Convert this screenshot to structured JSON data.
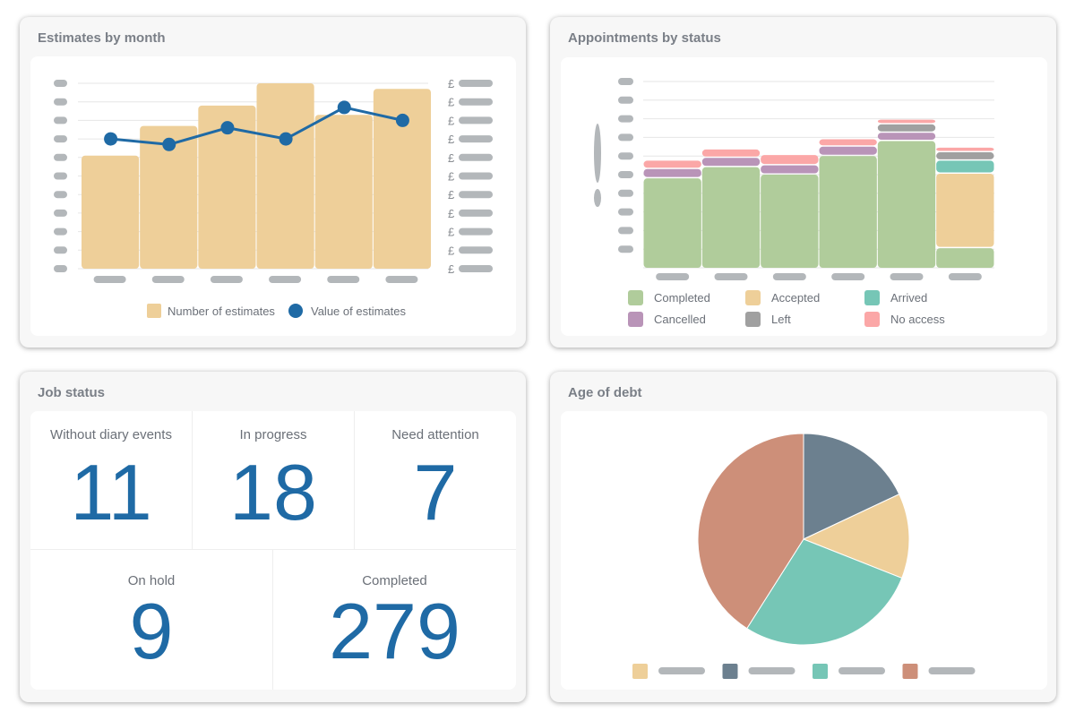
{
  "cards": {
    "estimates": {
      "title": "Estimates by month"
    },
    "appointments": {
      "title": "Appointments by status"
    },
    "job_status": {
      "title": "Job status",
      "tiles": [
        {
          "label": "Without diary events",
          "value": "11"
        },
        {
          "label": "In progress",
          "value": "18"
        },
        {
          "label": "Need attention",
          "value": "7"
        },
        {
          "label": "On hold",
          "value": "9"
        },
        {
          "label": "Completed",
          "value": "279"
        }
      ]
    },
    "debt": {
      "title": "Age of debt"
    }
  },
  "colors": {
    "tan": "#eecf99",
    "blue": "#1f6aa5",
    "green": "#b0cc9b",
    "purple": "#b994b8",
    "teal": "#76c6b6",
    "grey": "#a0a0a0",
    "pink": "#fba7a7",
    "slate": "#6c808f",
    "salmon": "#cd8f79",
    "placeholder": "#b3b7ba"
  },
  "chart_data": [
    {
      "type": "bar+line",
      "title": "Estimates by month",
      "ticks_redacted": true,
      "right_axis_prefix": "£",
      "categories_count": 6,
      "ylim": [
        0,
        10
      ],
      "y2lim": [
        0,
        10
      ],
      "grid": true,
      "legend_placement": "bottom",
      "series": [
        {
          "name": "Number of estimates",
          "type": "bar",
          "color": "#eecf99",
          "values": [
            6.1,
            7.7,
            8.8,
            10.0,
            8.3,
            9.7
          ]
        },
        {
          "name": "Value of estimates",
          "type": "line",
          "color": "#1f6aa5",
          "values": [
            7.0,
            6.7,
            7.6,
            7.0,
            8.7,
            8.0
          ]
        }
      ]
    },
    {
      "type": "stacked-bar",
      "title": "Appointments by status",
      "ticks_redacted": true,
      "categories_count": 6,
      "ylim": [
        0,
        10
      ],
      "grid": true,
      "legend_placement": "bottom",
      "series": [
        {
          "name": "Completed",
          "color": "#b0cc9b",
          "values": [
            4.8,
            5.4,
            5.0,
            6.0,
            6.8,
            1.05
          ]
        },
        {
          "name": "Accepted",
          "color": "#eecf99",
          "values": [
            0,
            0,
            0,
            0,
            0,
            4.0
          ]
        },
        {
          "name": "Arrived",
          "color": "#76c6b6",
          "values": [
            0,
            0,
            0,
            0,
            0,
            0.7
          ]
        },
        {
          "name": "Cancelled",
          "color": "#b994b8",
          "values": [
            0.5,
            0.5,
            0.5,
            0.5,
            0.45,
            0
          ]
        },
        {
          "name": "Left",
          "color": "#a0a0a0",
          "values": [
            0,
            0,
            0,
            0,
            0.45,
            0.45
          ]
        },
        {
          "name": "No access",
          "color": "#fba7a7",
          "values": [
            0.45,
            0.45,
            0.55,
            0.4,
            0.25,
            0.25
          ]
        }
      ],
      "legend_order": [
        "Completed",
        "Accepted",
        "Arrived",
        "Cancelled",
        "Left",
        "No access"
      ]
    },
    {
      "type": "pie",
      "title": "Age of debt",
      "labels_redacted": true,
      "legend_placement": "bottom",
      "slices": [
        {
          "color": "#6c808f",
          "value": 18
        },
        {
          "color": "#eecf99",
          "value": 13
        },
        {
          "color": "#76c6b6",
          "value": 28
        },
        {
          "color": "#cd8f79",
          "value": 41
        }
      ],
      "legend_colors": [
        "#eecf99",
        "#6c808f",
        "#76c6b6",
        "#cd8f79"
      ]
    }
  ]
}
